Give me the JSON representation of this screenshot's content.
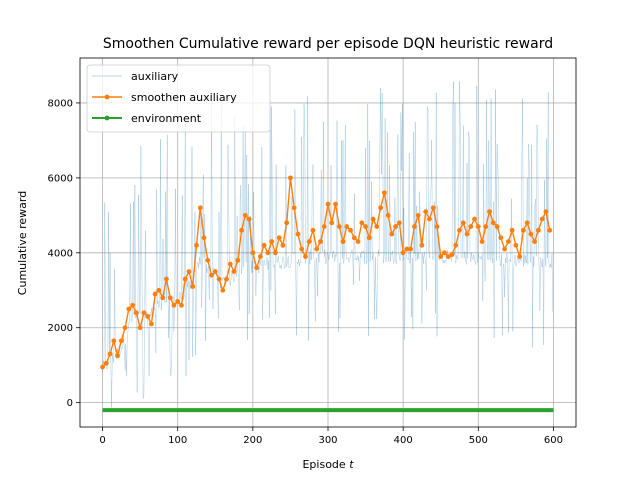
{
  "chart_data": {
    "type": "line",
    "title": "Smoothen Cumulative reward per episode DQN heuristic reward",
    "xlabel": "Episode ",
    "xlabel_var": "t",
    "ylabel": "Cumulative reward",
    "xlim": [
      -30,
      630
    ],
    "ylim": [
      -650,
      9200
    ],
    "xticks": [
      0,
      100,
      200,
      300,
      400,
      500,
      600
    ],
    "yticks": [
      0,
      2000,
      4000,
      6000,
      8000
    ],
    "grid": true,
    "legend_position": "top-left",
    "series": [
      {
        "name": "auxiliary",
        "color": "#1f77b4",
        "style": "thin-line-with-tiny-markers",
        "anchors_x": [
          0,
          10,
          20,
          30,
          40,
          50,
          60,
          70,
          80,
          90,
          100,
          110,
          120,
          130,
          140,
          150,
          160,
          170,
          180,
          190,
          200,
          220,
          250,
          280,
          300,
          350,
          400,
          450,
          500,
          550,
          600
        ],
        "anchors_y": [
          900,
          1100,
          1300,
          1700,
          2300,
          2300,
          2200,
          2500,
          2700,
          2800,
          2700,
          3000,
          3300,
          3800,
          3600,
          3400,
          3200,
          3300,
          3500,
          3700,
          3600,
          3700,
          3800,
          3900,
          3900,
          3900,
          3900,
          3900,
          3850,
          3800,
          3800
        ],
        "points": 600
      },
      {
        "name": "smoothen auxiliary",
        "color": "#ff7f0e",
        "style": "line-with-dot-markers",
        "x": [
          0,
          5,
          10,
          15,
          20,
          25,
          30,
          35,
          40,
          45,
          50,
          55,
          60,
          65,
          70,
          75,
          80,
          85,
          90,
          95,
          100,
          105,
          110,
          115,
          120,
          125,
          130,
          135,
          140,
          145,
          150,
          155,
          160,
          165,
          170,
          175,
          180,
          185,
          190,
          195,
          200,
          205,
          210,
          215,
          220,
          225,
          230,
          235,
          240,
          245,
          250,
          255,
          260,
          265,
          270,
          275,
          280,
          285,
          290,
          295,
          300,
          305,
          310,
          315,
          320,
          325,
          330,
          335,
          340,
          345,
          350,
          355,
          360,
          365,
          370,
          375,
          380,
          385,
          390,
          395,
          400,
          405,
          410,
          415,
          420,
          425,
          430,
          435,
          440,
          445,
          450,
          455,
          460,
          465,
          470,
          475,
          480,
          485,
          490,
          495,
          500,
          505,
          510,
          515,
          520,
          525,
          530,
          535,
          540,
          545,
          550,
          555,
          560,
          565,
          570,
          575,
          580,
          585,
          590,
          595
        ],
        "y": [
          950,
          1050,
          1300,
          1650,
          1250,
          1650,
          2000,
          2500,
          2600,
          2400,
          2000,
          2400,
          2300,
          2100,
          2900,
          3000,
          2800,
          3300,
          2800,
          2600,
          2700,
          2600,
          3300,
          3500,
          3100,
          4200,
          5200,
          4400,
          3800,
          3400,
          3500,
          3300,
          3000,
          3300,
          3700,
          3500,
          3800,
          4600,
          5000,
          4900,
          4000,
          3600,
          3900,
          4200,
          4000,
          4300,
          4000,
          4400,
          4200,
          4800,
          6000,
          5200,
          4500,
          4100,
          3900,
          4300,
          4600,
          4100,
          4300,
          4700,
          5300,
          4800,
          5300,
          4700,
          4300,
          4700,
          4600,
          4400,
          4300,
          4800,
          4700,
          4400,
          4900,
          4700,
          5200,
          5600,
          5000,
          4500,
          4700,
          4800,
          4000,
          4100,
          4100,
          4700,
          5000,
          4200,
          5100,
          4900,
          5200,
          4700,
          3900,
          4000,
          3900,
          3950,
          4200,
          4600,
          4800,
          4500,
          4700,
          4900,
          4700,
          4300,
          4700,
          5100,
          4800,
          4700,
          4400,
          4100,
          4300,
          4600,
          4200,
          3900,
          4600,
          4800,
          4500,
          4300,
          4600,
          4900,
          5100,
          4600
        ]
      },
      {
        "name": "environment",
        "color": "#2ca02c",
        "style": "line-with-dot-markers",
        "x": [
          0,
          600
        ],
        "y": [
          -200,
          -200
        ]
      }
    ]
  }
}
